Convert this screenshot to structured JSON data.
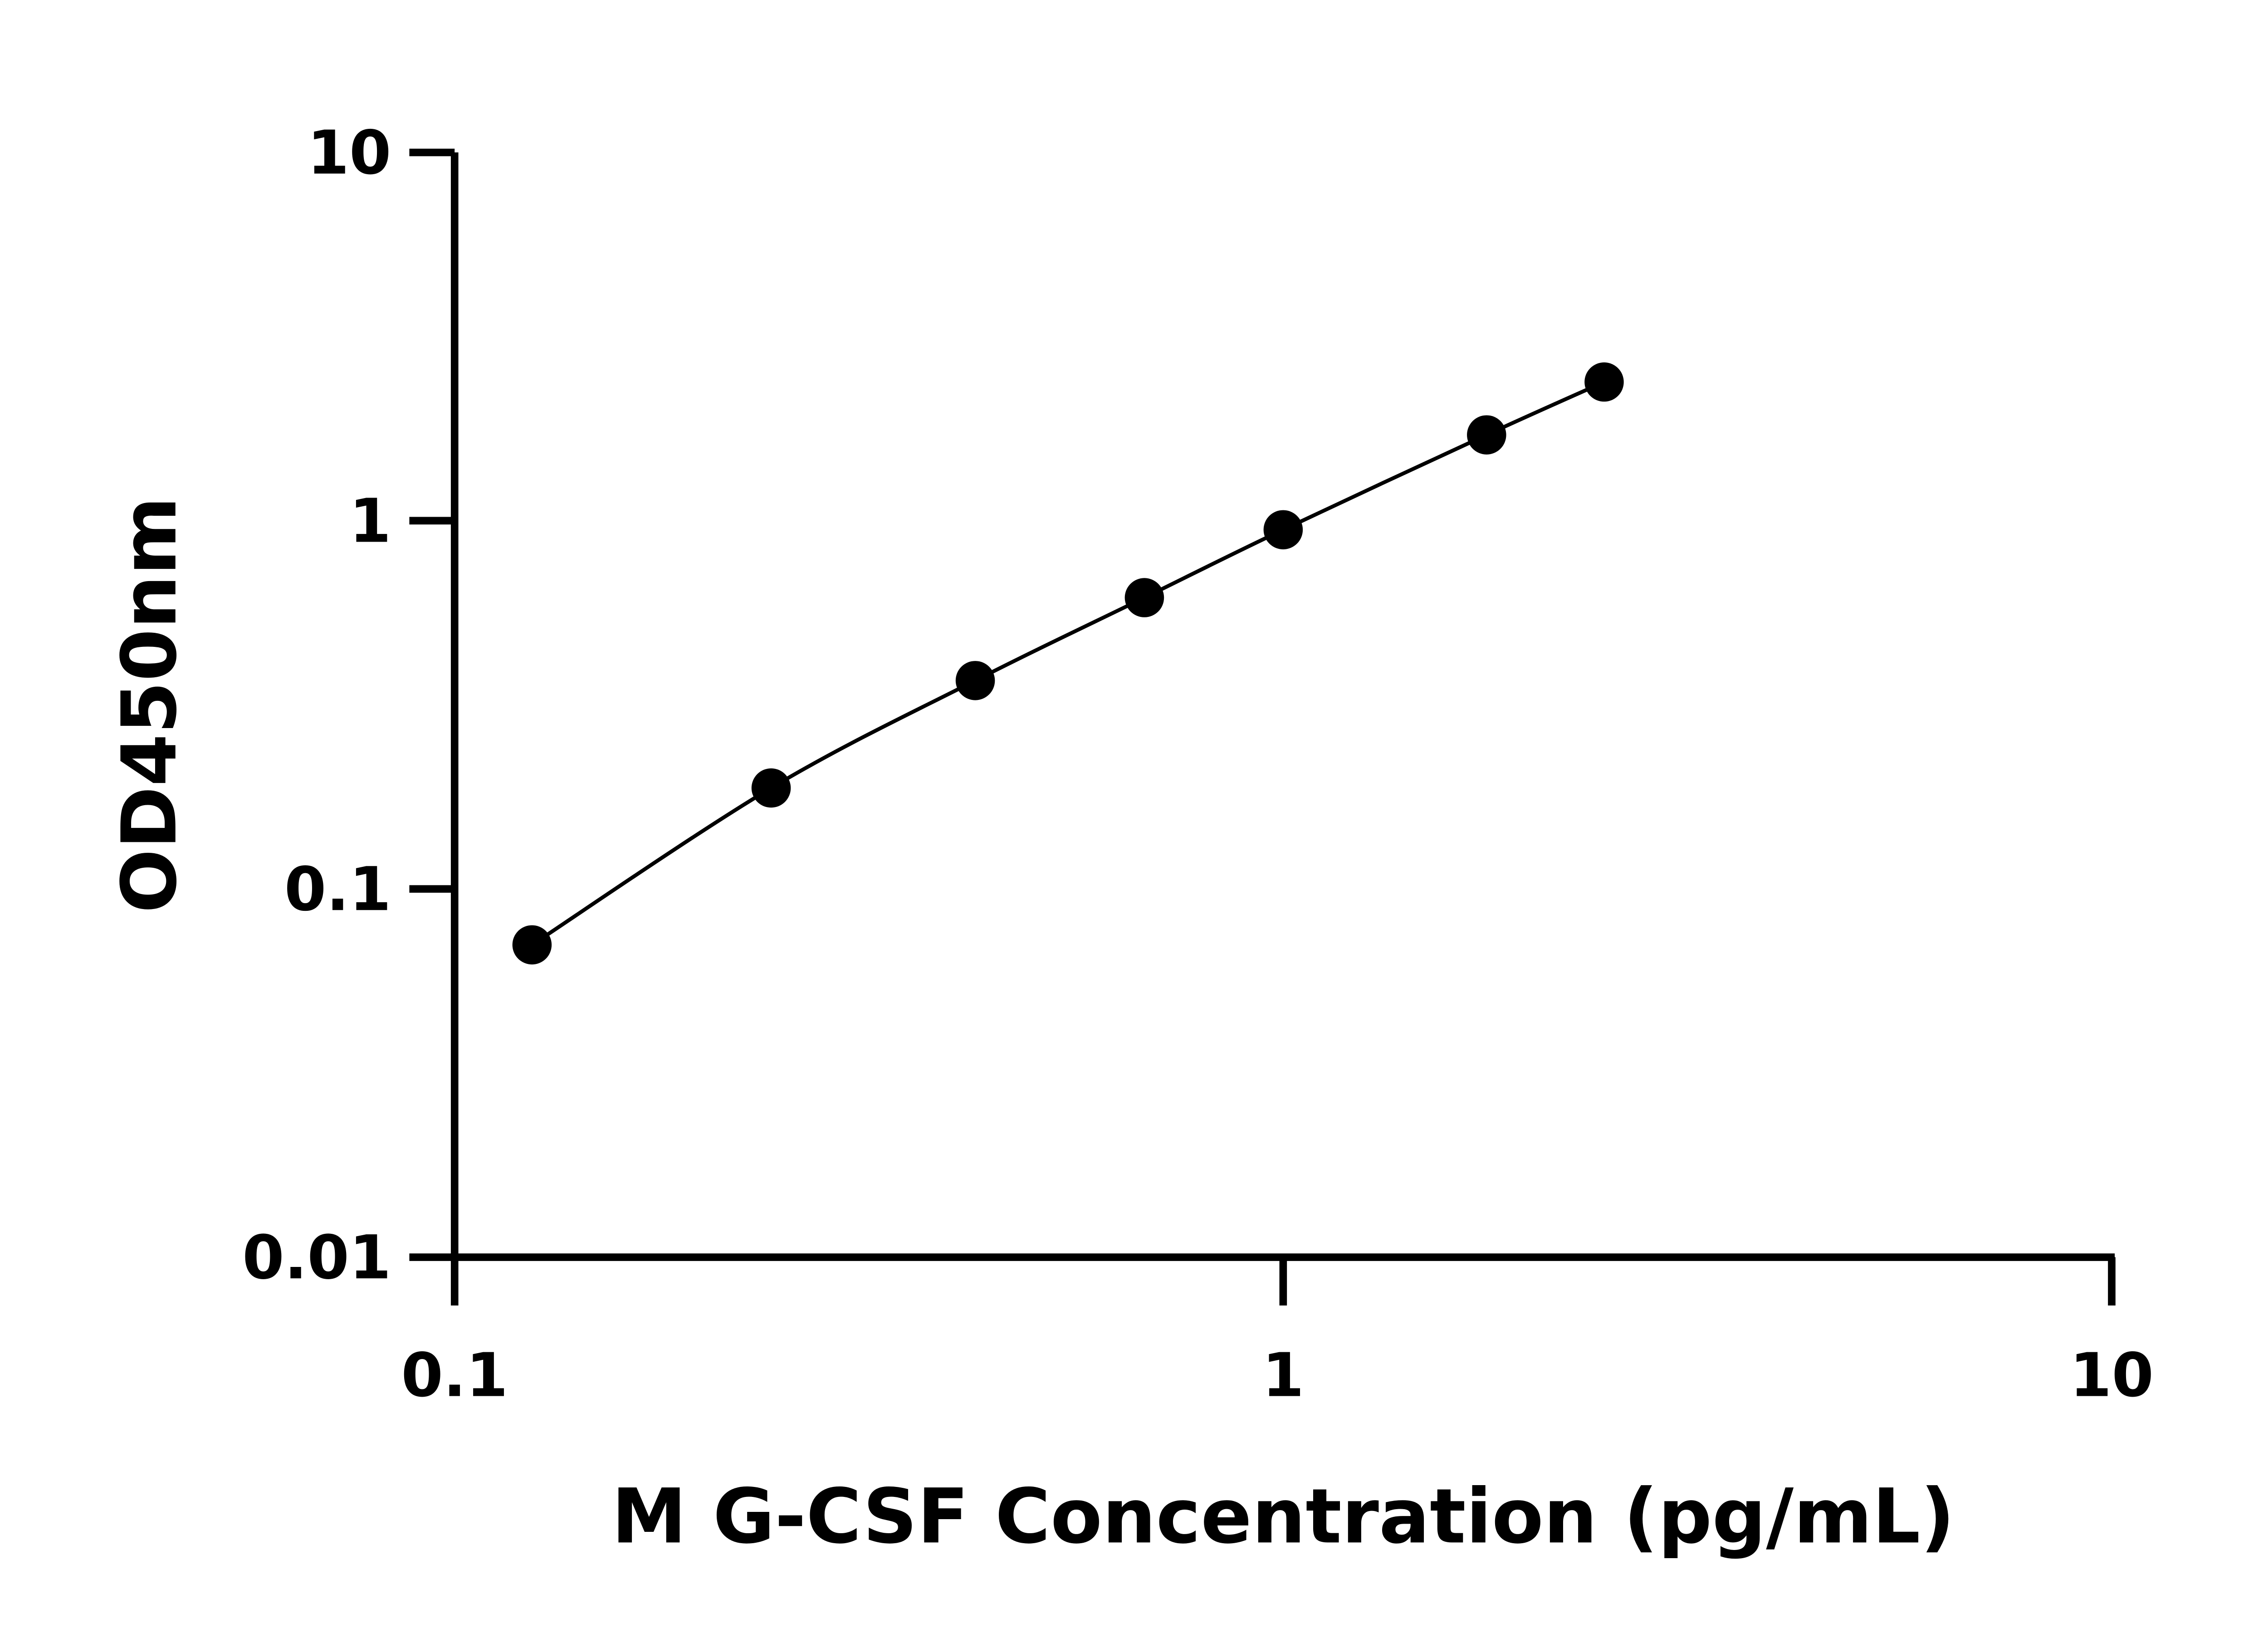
{
  "chart_data": {
    "type": "scatter",
    "title": "",
    "xlabel": "M G-CSF Concentration (pg/mL)",
    "ylabel": "OD450nm",
    "xscale": "log",
    "yscale": "log",
    "xlim": [
      0.1,
      10
    ],
    "ylim": [
      0.01,
      10
    ],
    "xticks": [
      "0.1",
      "1",
      "10"
    ],
    "yticks": [
      "0.01",
      "0.1",
      "1",
      "10"
    ],
    "grid": false,
    "fit_curve": true,
    "marker_color": "#000000",
    "line_color": "#000000",
    "x": [
      0.124,
      0.241,
      0.425,
      0.68,
      1.0,
      1.76,
      2.44
    ],
    "y": [
      0.0705,
      0.188,
      0.368,
      0.618,
      0.945,
      1.71,
      2.38
    ]
  }
}
